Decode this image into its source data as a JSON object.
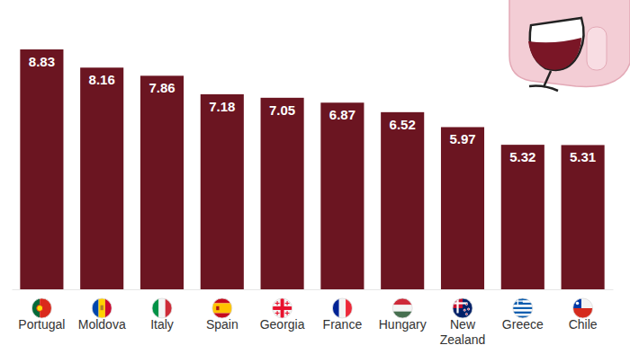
{
  "chart_data": {
    "type": "bar",
    "categories": [
      "Portugal",
      "Moldova",
      "Italy",
      "Spain",
      "Georgia",
      "France",
      "Hungary",
      "New Zealand",
      "Greece",
      "Chile"
    ],
    "values": [
      8.83,
      8.16,
      7.86,
      7.18,
      7.05,
      6.87,
      6.52,
      5.97,
      5.32,
      5.31
    ],
    "color": "#6b1521",
    "data_labels": true,
    "tick_labels": "x"
  }
}
